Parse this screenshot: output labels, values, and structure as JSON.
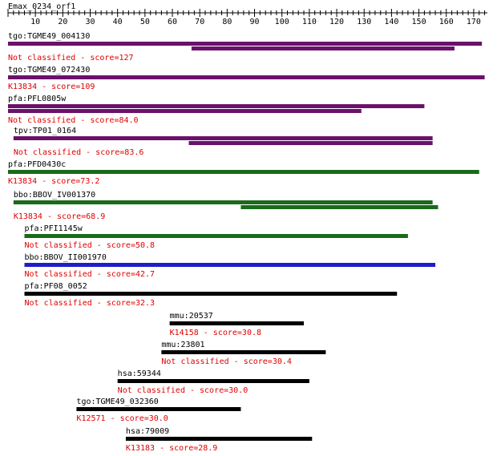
{
  "query_name": "Emax_0234_orf1",
  "ruler": {
    "min": 0,
    "max": 175,
    "major_step": 10,
    "minor_step": 2,
    "labels": [
      "10",
      "20",
      "30",
      "40",
      "50",
      "60",
      "70",
      "80",
      "90",
      "100",
      "110",
      "120",
      "130",
      "140",
      "150",
      "160",
      "170"
    ]
  },
  "colors": {
    "purple": "#6a126a",
    "green": "#1a6a1a",
    "blue": "#1e1ec8",
    "black": "#000000",
    "score_text": "#e00000",
    "name_text": "#000000"
  },
  "hits": [
    {
      "name": "tgo:TGME49_004130",
      "score_label": "Not classified - score=127",
      "color": "purple",
      "segments": [
        [
          0,
          173
        ],
        [
          67,
          163
        ]
      ]
    },
    {
      "name": "tgo:TGME49_072430",
      "score_label": "K13834 - score=109",
      "color": "purple",
      "segments": [
        [
          0,
          174
        ]
      ]
    },
    {
      "name": "pfa:PFL0805w",
      "score_label": "Not classified - score=84.0",
      "color": "purple",
      "segments": [
        [
          0,
          152
        ],
        [
          0,
          129
        ]
      ]
    },
    {
      "name": "tpv:TP01_0164",
      "score_label": "Not classified - score=83.6",
      "color": "purple",
      "segments": [
        [
          2,
          155
        ],
        [
          66,
          155
        ]
      ]
    },
    {
      "name": "pfa:PFD0430c",
      "score_label": "K13834 - score=73.2",
      "color": "green",
      "segments": [
        [
          0,
          172
        ]
      ]
    },
    {
      "name": "bbo:BBOV_IV001370",
      "score_label": "K13834 - score=68.9",
      "color": "green",
      "segments": [
        [
          2,
          155
        ],
        [
          85,
          157
        ]
      ]
    },
    {
      "name": "pfa:PFI1145w",
      "score_label": "Not classified - score=50.8",
      "color": "green",
      "segments": [
        [
          6,
          146
        ]
      ]
    },
    {
      "name": "bbo:BBOV_II001970",
      "score_label": "Not classified - score=42.7",
      "color": "blue",
      "segments": [
        [
          6,
          156
        ]
      ]
    },
    {
      "name": "pfa:PF08_0052",
      "score_label": "Not classified - score=32.3",
      "color": "black",
      "segments": [
        [
          6,
          142
        ]
      ]
    },
    {
      "name": "mmu:20537",
      "score_label": "K14158 - score=30.8",
      "color": "black",
      "segments": [
        [
          59,
          108
        ]
      ]
    },
    {
      "name": "mmu:23801",
      "score_label": "Not classified - score=30.4",
      "color": "black",
      "segments": [
        [
          56,
          116
        ]
      ]
    },
    {
      "name": "hsa:59344",
      "score_label": "Not classified - score=30.0",
      "color": "black",
      "segments": [
        [
          40,
          110
        ]
      ]
    },
    {
      "name": "tgo:TGME49_032360",
      "score_label": "K12571 - score=30.0",
      "color": "black",
      "segments": [
        [
          25,
          85
        ]
      ]
    },
    {
      "name": "hsa:79009",
      "score_label": "K13183 - score=28.9",
      "color": "black",
      "segments": [
        [
          43,
          111
        ]
      ]
    }
  ]
}
